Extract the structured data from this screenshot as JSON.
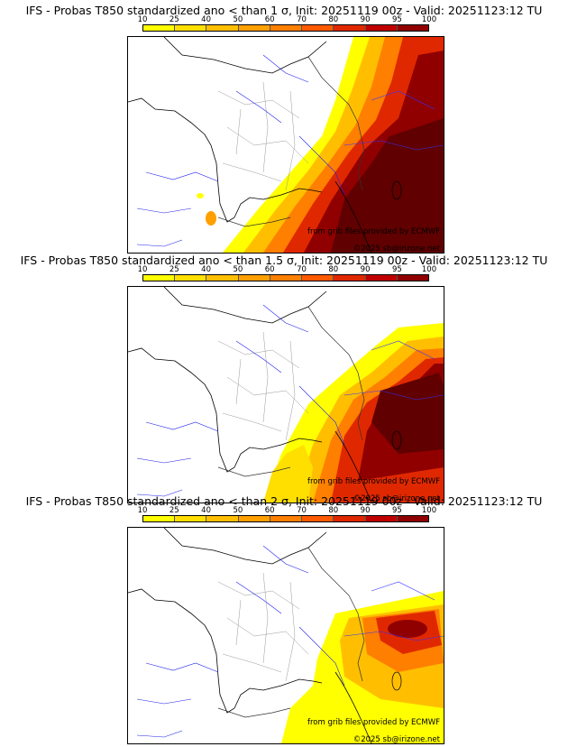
{
  "colors": [
    "#ffff00",
    "#ffdf00",
    "#ffbf00",
    "#ff9f00",
    "#ff7f00",
    "#ff5a00",
    "#e02800",
    "#c00000",
    "#900000",
    "#600000"
  ],
  "ticks": [
    "10",
    "25",
    "40",
    "50",
    "60",
    "70",
    "80",
    "90",
    "95",
    "100"
  ],
  "panels": [
    {
      "title": "IFS - Probas T850  standardized ano < than 1 σ, Init: 20251119 00z - Valid: 20251123:12 TU",
      "credit_source": "from grib files provided by ECMWF",
      "credit_copyright": "©2025 sb@irizone.net"
    },
    {
      "title": "IFS - Probas T850  standardized ano < than 1.5 σ, Init: 20251119 00z - Valid: 20251123:12 TU",
      "credit_source": "from grib files provided by ECMWF",
      "credit_copyright": "©2025 sb@irizone.net"
    },
    {
      "title": "IFS - Probas T850  standardized ano < than 2 σ, Init: 20251119 00z - Valid: 20251123:12 TU",
      "credit_source": "from grib files provided by ECMWF",
      "credit_copyright": "©2025 sb@irizone.net"
    }
  ]
}
